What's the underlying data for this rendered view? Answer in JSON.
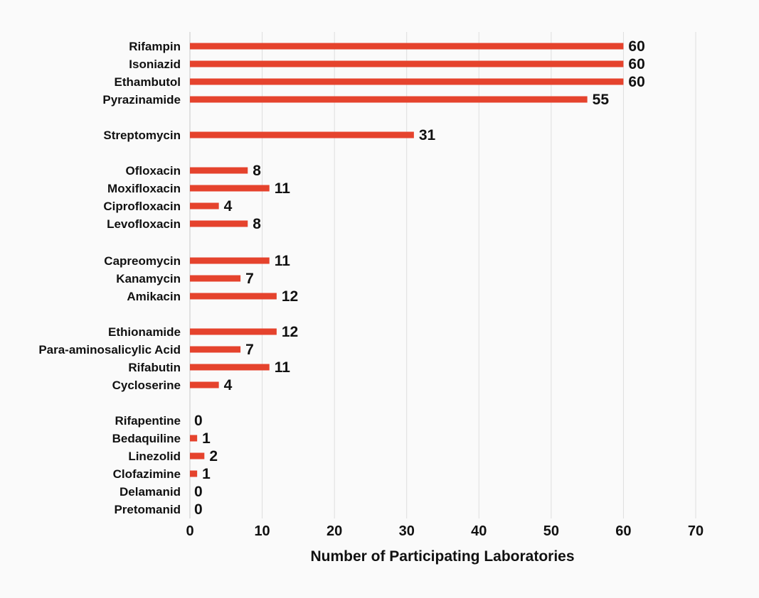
{
  "chart_data": {
    "type": "bar",
    "orientation": "horizontal",
    "categories": [
      "Rifampin",
      "Isoniazid",
      "Ethambutol",
      "Pyrazinamide",
      "Streptomycin",
      "Ofloxacin",
      "Moxifloxacin",
      "Ciprofloxacin",
      "Levofloxacin",
      "Capreomycin",
      "Kanamycin",
      "Amikacin",
      "Ethionamide",
      "Para-aminosalicylic Acid",
      "Rifabutin",
      "Cycloserine",
      "Rifapentine",
      "Bedaquiline",
      "Linezolid",
      "Clofazimine",
      "Delamanid",
      "Pretomanid"
    ],
    "groups": [
      4,
      1,
      4,
      3,
      4,
      6
    ],
    "values": [
      60,
      60,
      60,
      55,
      31,
      8,
      11,
      4,
      8,
      11,
      7,
      12,
      12,
      7,
      11,
      4,
      0,
      1,
      2,
      1,
      0,
      0
    ],
    "xlabel": "Number of Participating Laboratories",
    "ylabel": "",
    "title": "",
    "xlim": [
      0,
      70
    ],
    "xticks": [
      0,
      10,
      20,
      30,
      40,
      50,
      60,
      70
    ],
    "grid": "vertical",
    "data_labels": true,
    "bar_color": "#e5432d",
    "grid_color": "#dddddd"
  }
}
